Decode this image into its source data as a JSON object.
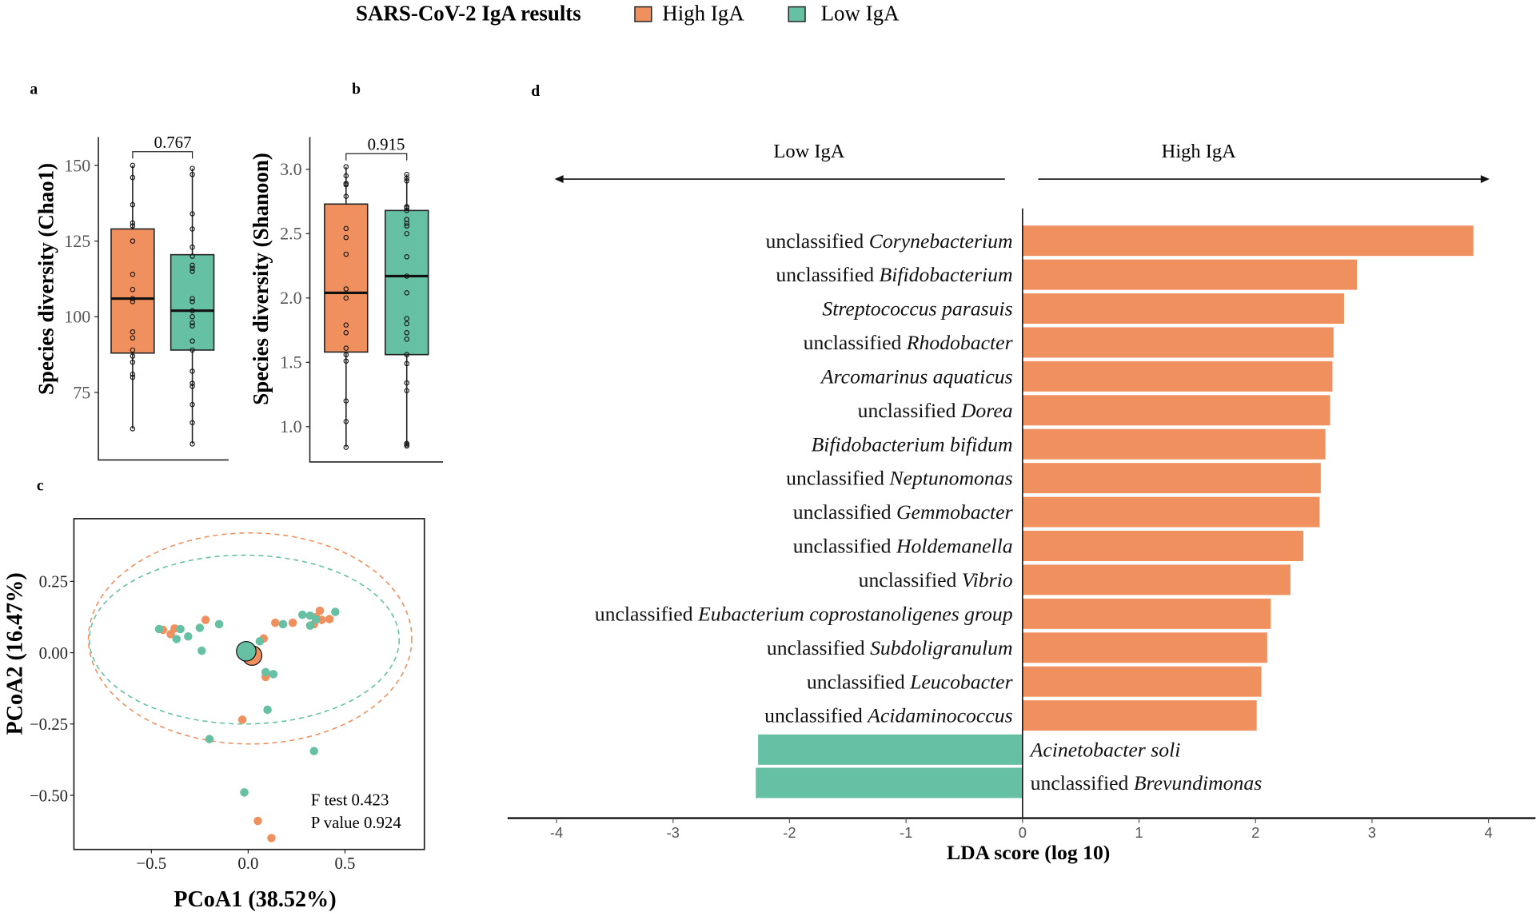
{
  "legend": {
    "title": "SARS-CoV-2 IgA results",
    "items": [
      {
        "label": "High IgA",
        "color": "#F0905F"
      },
      {
        "label": "Low IgA",
        "color": "#66C0A3"
      }
    ]
  },
  "panel_letters": [
    "a",
    "b",
    "c",
    "d"
  ],
  "chart_data": [
    {
      "type": "box",
      "panel": "a",
      "ylabel": "Species diversity (Chao1)",
      "yticks": [
        75,
        100,
        125,
        150
      ],
      "p_value": "0.767",
      "groups": [
        {
          "name": "High IgA",
          "q1": 88,
          "median": 106,
          "q3": 129,
          "min": 63,
          "max": 150,
          "points": [
            150,
            146,
            137,
            131,
            130,
            125,
            114,
            109,
            106,
            105,
            95,
            93,
            89,
            87,
            85,
            81,
            80,
            63
          ]
        },
        {
          "name": "Low IgA",
          "q1": 89,
          "median": 102,
          "q3": 120.5,
          "min": 58,
          "max": 149,
          "points": [
            149,
            147,
            134,
            129,
            123,
            120,
            117,
            116,
            115,
            106,
            105,
            102,
            100,
            98,
            97,
            92,
            89,
            82,
            78,
            77,
            71,
            65,
            58
          ]
        }
      ]
    },
    {
      "type": "box",
      "panel": "b",
      "ylabel": "Species diversity (Shanoon)",
      "yticks": [
        "1.0",
        "1.5",
        "2.0",
        "2.5",
        "3.0"
      ],
      "p_value": "0.915",
      "groups": [
        {
          "name": "High IgA",
          "q1": 1.58,
          "median": 2.04,
          "q3": 2.73,
          "min": 0.84,
          "max": 3.02,
          "points": [
            3.02,
            2.95,
            2.89,
            2.88,
            2.79,
            2.54,
            2.47,
            2.34,
            2.07,
            2.0,
            1.79,
            1.73,
            1.61,
            1.56,
            1.51,
            1.2,
            1.04,
            0.84
          ]
        },
        {
          "name": "Low IgA",
          "q1": 1.56,
          "median": 2.17,
          "q3": 2.68,
          "min": 0.85,
          "max": 2.96,
          "points": [
            2.96,
            2.93,
            2.91,
            2.71,
            2.7,
            2.68,
            2.61,
            2.58,
            2.56,
            2.5,
            2.32,
            2.17,
            2.04,
            1.84,
            1.8,
            1.73,
            1.68,
            1.56,
            1.49,
            1.34,
            1.28,
            0.87,
            0.86,
            0.85
          ]
        }
      ]
    },
    {
      "type": "scatter",
      "panel": "c",
      "xlabel": "PCoA1 (38.52%)",
      "ylabel": "PCoA2 (16.47%)",
      "xlim": [
        -0.9,
        0.91
      ],
      "ylim": [
        -0.69,
        0.47
      ],
      "xticks": [
        "-0.5",
        "0.0",
        "0.5"
      ],
      "yticks": [
        "-0.50",
        "-0.25",
        "0.00",
        "0.25"
      ],
      "annotation": [
        "F test 0.423",
        "P value 0.924"
      ],
      "series": [
        {
          "name": "High IgA",
          "points": [
            [
              -0.44,
              0.08
            ],
            [
              -0.4,
              0.065
            ],
            [
              -0.38,
              0.085
            ],
            [
              -0.22,
              0.115
            ],
            [
              0.08,
              0.05
            ],
            [
              0.09,
              -0.085
            ],
            [
              -0.03,
              -0.235
            ],
            [
              0.05,
              -0.59
            ],
            [
              0.12,
              -0.65
            ],
            [
              0.14,
              0.105
            ],
            [
              0.23,
              0.105
            ],
            [
              0.37,
              0.147
            ],
            [
              0.38,
              0.115
            ],
            [
              0.42,
              0.118
            ],
            [
              0.35,
              0.125
            ],
            [
              0.34,
              0.1
            ]
          ],
          "centroid": [
            0.02,
            -0.01
          ],
          "ellipse": {
            "cx": 0.01,
            "cy": 0.05,
            "rx": 0.835,
            "ry": 0.37
          }
        },
        {
          "name": "Low IgA",
          "points": [
            [
              -0.46,
              0.083
            ],
            [
              -0.37,
              0.048
            ],
            [
              -0.35,
              0.083
            ],
            [
              -0.31,
              0.057
            ],
            [
              -0.25,
              0.087
            ],
            [
              -0.15,
              0.1
            ],
            [
              -0.24,
              0.007
            ],
            [
              0.06,
              0.04
            ],
            [
              0.09,
              -0.068
            ],
            [
              0.13,
              -0.075
            ],
            [
              0.1,
              -0.2
            ],
            [
              -0.2,
              -0.303
            ],
            [
              0.34,
              -0.345
            ],
            [
              -0.02,
              -0.49
            ],
            [
              0.18,
              0.1
            ],
            [
              0.28,
              0.133
            ],
            [
              0.32,
              0.13
            ],
            [
              0.32,
              0.095
            ],
            [
              0.45,
              0.143
            ],
            [
              0.35,
              0.117
            ]
          ],
          "centroid": [
            -0.01,
            0.005
          ],
          "ellipse": {
            "cx": -0.02,
            "cy": 0.046,
            "rx": 0.8,
            "ry": 0.296
          }
        }
      ]
    },
    {
      "type": "bar",
      "panel": "d",
      "orientation": "horizontal",
      "xlabel": "LDA score (log 10)",
      "xlim": [
        -4.4,
        4.4
      ],
      "xticks": [
        "-4",
        "-3",
        "-2",
        "-1",
        "0",
        "1",
        "2",
        "3",
        "4"
      ],
      "direction_labels": {
        "left": "Low IgA",
        "right": "High IgA"
      },
      "bars": [
        {
          "prefix": "unclassified ",
          "taxon": "Corynebacterium",
          "value": 3.87
        },
        {
          "prefix": "unclassified ",
          "taxon": "Bifidobacterium",
          "value": 2.87
        },
        {
          "prefix": "",
          "taxon": "Streptococcus parasuis",
          "value": 2.76
        },
        {
          "prefix": "unclassified ",
          "taxon": "Rhodobacter",
          "value": 2.67
        },
        {
          "prefix": "",
          "taxon": "Arcomarinus aquaticus",
          "value": 2.66
        },
        {
          "prefix": "unclassified ",
          "taxon": "Dorea",
          "value": 2.64
        },
        {
          "prefix": "",
          "taxon": "Bifidobacterium bifidum",
          "value": 2.6
        },
        {
          "prefix": "unclassified ",
          "taxon": "Neptunomonas",
          "value": 2.56
        },
        {
          "prefix": "unclassified ",
          "taxon": "Gemmobacter",
          "value": 2.55
        },
        {
          "prefix": "unclassified ",
          "taxon": "Holdemanella",
          "value": 2.41
        },
        {
          "prefix": "unclassified ",
          "taxon": "Vibrio",
          "value": 2.3
        },
        {
          "prefix": "unclassified ",
          "taxon": "Eubacterium coprostanoligenes group",
          "value": 2.13
        },
        {
          "prefix": "unclassified ",
          "taxon": "Subdoligranulum",
          "value": 2.1
        },
        {
          "prefix": "unclassified ",
          "taxon": "Leucobacter",
          "value": 2.05
        },
        {
          "prefix": "unclassified ",
          "taxon": "Acidaminococcus",
          "value": 2.01
        },
        {
          "prefix": "",
          "taxon": "Acinetobacter soli",
          "value": -2.27
        },
        {
          "prefix": "unclassified ",
          "taxon": "Brevundimonas",
          "value": -2.29
        }
      ]
    }
  ]
}
